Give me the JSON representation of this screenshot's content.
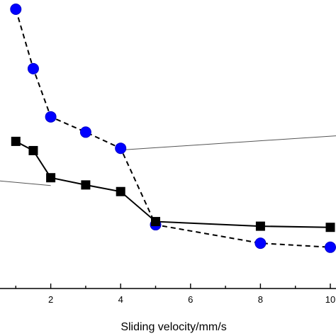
{
  "chart_data": {
    "type": "line",
    "title": "",
    "xlabel": "Sliding velocity/mm/s",
    "ylabel": "",
    "xlim": [
      0,
      10
    ],
    "ylim": [
      0,
      1
    ],
    "x_ticks": [
      2,
      4,
      6,
      8,
      10
    ],
    "x_tick_labels": [
      "2",
      "4",
      "6",
      "8",
      "10"
    ],
    "grid": false,
    "series": [
      {
        "marker": "circle",
        "line_style": "dashed",
        "color": "#0000ff",
        "x": [
          1,
          1.5,
          2,
          3,
          4,
          5,
          8,
          10
        ],
        "y": [
          0.968,
          0.762,
          0.595,
          0.542,
          0.486,
          0.221,
          0.157,
          0.143
        ]
      },
      {
        "marker": "square",
        "line_style": "solid",
        "color": "#000000",
        "x": [
          1,
          1.5,
          2,
          3,
          4,
          5,
          8,
          10
        ],
        "y": [
          0.51,
          0.478,
          0.384,
          0.359,
          0.336,
          0.232,
          0.216,
          0.212
        ]
      }
    ],
    "annotation_lines": [
      {
        "from": [
          -1,
          0.39
        ],
        "to": [
          2,
          0.357
        ]
      },
      {
        "from": [
          4,
          0.48
        ],
        "to": [
          11,
          0.536
        ]
      }
    ]
  }
}
